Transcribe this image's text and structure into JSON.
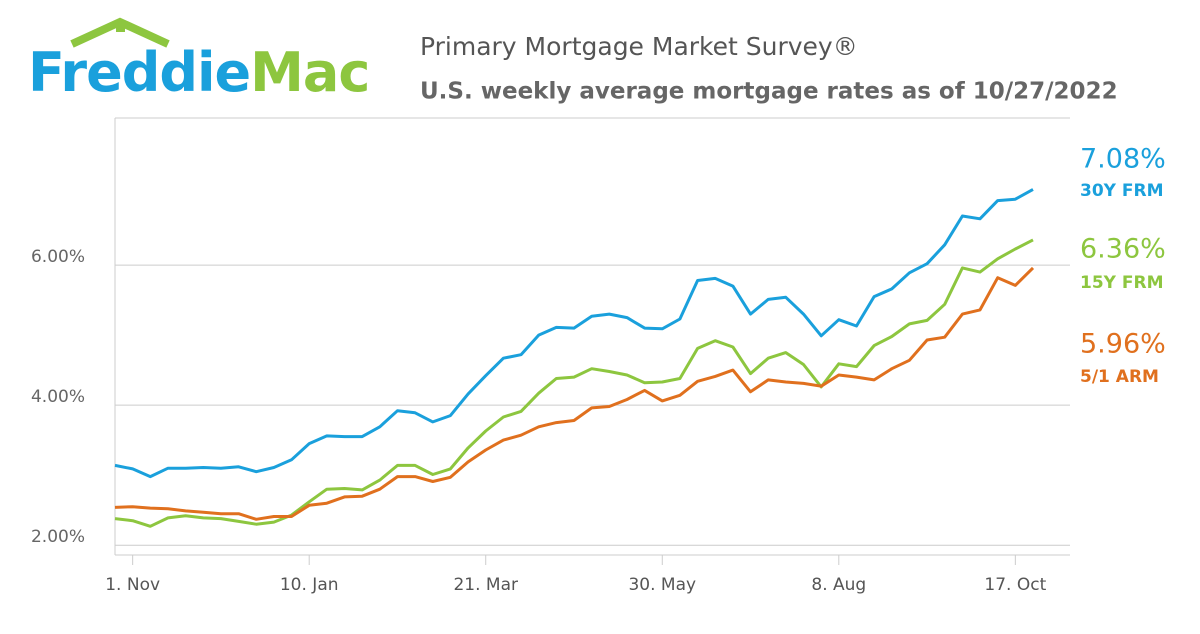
{
  "chart_data": {
    "type": "line",
    "logo": [
      "Freddie",
      "Mac"
    ],
    "title": "Primary Mortgage Market Survey®",
    "subtitle": "U.S. weekly average mortgage rates as of 10/27/2022",
    "categories": [
      null,
      "1. Nov",
      null,
      null,
      null,
      null,
      null,
      null,
      null,
      null,
      null,
      "10. Jan",
      null,
      null,
      null,
      null,
      null,
      null,
      null,
      null,
      null,
      "21. Mar",
      null,
      null,
      null,
      null,
      null,
      null,
      null,
      null,
      null,
      "30. May",
      null,
      null,
      null,
      null,
      null,
      null,
      null,
      null,
      null,
      "8. Aug",
      null,
      null,
      null,
      null,
      null,
      null,
      null,
      null,
      null,
      "17. Oct",
      null
    ],
    "ylim": [
      1.86,
      8.1
    ],
    "yticks": [
      {
        "value": 2,
        "label": "2.00%"
      },
      {
        "value": 4,
        "label": "4.00%"
      },
      {
        "value": 6,
        "label": "6.00%"
      }
    ],
    "grid": true,
    "series": [
      {
        "name": "30Y FRM",
        "color": "#1aa0dc",
        "values": [
          3.14,
          3.09,
          2.98,
          3.1,
          3.1,
          3.11,
          3.1,
          3.12,
          3.05,
          3.11,
          3.22,
          3.45,
          3.56,
          3.55,
          3.55,
          3.69,
          3.92,
          3.89,
          3.76,
          3.85,
          4.16,
          4.42,
          4.67,
          4.72,
          5.0,
          5.11,
          5.1,
          5.27,
          5.3,
          5.25,
          5.1,
          5.09,
          5.23,
          5.78,
          5.81,
          5.7,
          5.3,
          5.51,
          5.54,
          5.3,
          4.99,
          5.22,
          5.13,
          5.55,
          5.66,
          5.89,
          6.02,
          6.29,
          6.7,
          6.66,
          6.92,
          6.94,
          7.08
        ],
        "value_labels": [
          null,
          null,
          null,
          null,
          null,
          null,
          null,
          null,
          null,
          null,
          null,
          null,
          null,
          null,
          null,
          null,
          null,
          null,
          null,
          null,
          null,
          null,
          null,
          null,
          null,
          null,
          null,
          null,
          null,
          null,
          null,
          null,
          null,
          null,
          null,
          null,
          null,
          null,
          null,
          null,
          null,
          null,
          null,
          null,
          null,
          null,
          null,
          null,
          null,
          null,
          null,
          null,
          "7.08%"
        ]
      },
      {
        "name": "15Y FRM",
        "color": "#8dc63f",
        "values": [
          2.38,
          2.35,
          2.27,
          2.39,
          2.42,
          2.39,
          2.38,
          2.34,
          2.3,
          2.33,
          2.43,
          2.62,
          2.8,
          2.81,
          2.79,
          2.93,
          3.14,
          3.14,
          3.01,
          3.09,
          3.39,
          3.63,
          3.83,
          3.91,
          4.17,
          4.38,
          4.4,
          4.52,
          4.48,
          4.43,
          4.32,
          4.33,
          4.38,
          4.81,
          4.92,
          4.83,
          4.45,
          4.67,
          4.75,
          4.58,
          4.26,
          4.59,
          4.55,
          4.85,
          4.98,
          5.16,
          5.21,
          5.44,
          5.96,
          5.9,
          6.09,
          6.23,
          6.36
        ],
        "value_labels": [
          null,
          null,
          null,
          null,
          null,
          null,
          null,
          null,
          null,
          null,
          null,
          null,
          null,
          null,
          null,
          null,
          null,
          null,
          null,
          null,
          null,
          null,
          null,
          null,
          null,
          null,
          null,
          null,
          null,
          null,
          null,
          null,
          null,
          null,
          null,
          null,
          null,
          null,
          null,
          null,
          null,
          null,
          null,
          null,
          null,
          null,
          null,
          null,
          null,
          null,
          null,
          null,
          "6.36%"
        ]
      },
      {
        "name": "5/1 ARM",
        "color": "#e0701e",
        "values": [
          2.54,
          2.55,
          2.53,
          2.52,
          2.49,
          2.47,
          2.45,
          2.45,
          2.37,
          2.41,
          2.41,
          2.57,
          2.6,
          2.69,
          2.7,
          2.8,
          2.98,
          2.98,
          2.91,
          2.97,
          3.19,
          3.36,
          3.5,
          3.57,
          3.69,
          3.75,
          3.78,
          3.96,
          3.98,
          4.08,
          4.21,
          4.06,
          4.14,
          4.34,
          4.41,
          4.5,
          4.19,
          4.36,
          4.33,
          4.31,
          4.27,
          4.43,
          4.4,
          4.36,
          4.52,
          4.64,
          4.93,
          4.97,
          5.3,
          5.36,
          5.82,
          5.71,
          5.96
        ],
        "value_labels": [
          null,
          null,
          null,
          null,
          null,
          null,
          null,
          null,
          null,
          null,
          null,
          null,
          null,
          null,
          null,
          null,
          null,
          null,
          null,
          null,
          null,
          null,
          null,
          null,
          null,
          null,
          null,
          null,
          null,
          null,
          null,
          null,
          null,
          null,
          null,
          null,
          null,
          null,
          null,
          null,
          null,
          null,
          null,
          null,
          null,
          null,
          null,
          null,
          null,
          null,
          null,
          null,
          "5.96%"
        ]
      }
    ]
  }
}
